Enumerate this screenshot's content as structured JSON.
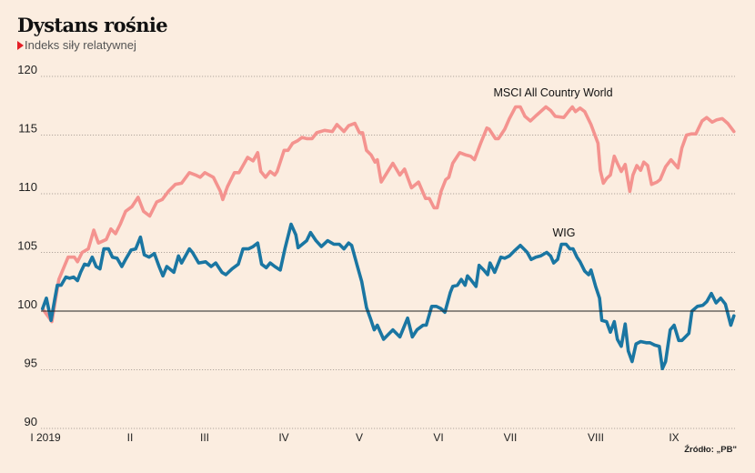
{
  "header": {
    "title": "Dystans rośnie",
    "subtitle": "Indeks siły relatywnej",
    "subtitle_marker_icon": "red-triangle-icon"
  },
  "source": "Źródło: „PB\"",
  "colors": {
    "background": "#fbede0",
    "msci": "#f4938f",
    "wig": "#1a76a2",
    "baseline": "#222222",
    "grid": "#9a9088",
    "marker": "#e41e26"
  },
  "chart_data": {
    "type": "line",
    "title": "Dystans rośnie",
    "subtitle": "Indeks siły relatywnej",
    "xlabel": "",
    "ylabel": "",
    "x_unit": "months since start of January 2019",
    "xlim": [
      0,
      9
    ],
    "ylim": [
      90,
      120
    ],
    "yticks": [
      90,
      95,
      100,
      105,
      110,
      115,
      120
    ],
    "ytick_labels": [
      "90",
      "95",
      "100",
      "105",
      "110",
      "115",
      "120"
    ],
    "xticks": [
      0,
      1,
      2,
      3,
      4,
      5,
      6,
      7,
      8
    ],
    "xtick_labels": [
      "I 2019",
      "II",
      "III",
      "IV",
      "V",
      "VI",
      "VII",
      "VIII",
      "IX"
    ],
    "baseline": 100,
    "grid": true,
    "legend": "none (direct labels)",
    "annotations": [
      {
        "text": "MSCI All Country World",
        "series": "MSCI All Country World"
      },
      {
        "text": "WIG",
        "series": "WIG"
      }
    ],
    "series": [
      {
        "name": "MSCI All Country World",
        "color": "#f4938f",
        "points": [
          [
            -0.12,
            100.2
          ],
          [
            0.0,
            99.1
          ],
          [
            0.09,
            102.7
          ],
          [
            0.21,
            104.6
          ],
          [
            0.29,
            104.6
          ],
          [
            0.33,
            104.2
          ],
          [
            0.39,
            105.0
          ],
          [
            0.47,
            105.3
          ],
          [
            0.54,
            106.9
          ],
          [
            0.6,
            105.8
          ],
          [
            0.7,
            106.1
          ],
          [
            0.76,
            107.0
          ],
          [
            0.82,
            106.6
          ],
          [
            0.88,
            107.4
          ],
          [
            0.95,
            108.5
          ],
          [
            1.03,
            108.9
          ],
          [
            1.11,
            109.7
          ],
          [
            1.18,
            108.5
          ],
          [
            1.26,
            108.1
          ],
          [
            1.35,
            109.3
          ],
          [
            1.42,
            109.5
          ],
          [
            1.5,
            110.2
          ],
          [
            1.59,
            110.8
          ],
          [
            1.67,
            110.9
          ],
          [
            1.77,
            111.8
          ],
          [
            1.85,
            111.6
          ],
          [
            1.91,
            111.4
          ],
          [
            1.97,
            111.8
          ],
          [
            2.08,
            111.4
          ],
          [
            2.17,
            110.2
          ],
          [
            2.2,
            109.5
          ],
          [
            2.26,
            110.6
          ],
          [
            2.35,
            111.8
          ],
          [
            2.41,
            111.8
          ],
          [
            2.52,
            113.1
          ],
          [
            2.59,
            112.8
          ],
          [
            2.65,
            113.5
          ],
          [
            2.69,
            111.9
          ],
          [
            2.75,
            111.4
          ],
          [
            2.81,
            111.9
          ],
          [
            2.87,
            111.6
          ],
          [
            2.9,
            111.9
          ],
          [
            2.99,
            113.7
          ],
          [
            3.04,
            113.7
          ],
          [
            3.1,
            114.3
          ],
          [
            3.16,
            114.5
          ],
          [
            3.22,
            114.8
          ],
          [
            3.28,
            114.7
          ],
          [
            3.35,
            114.7
          ],
          [
            3.41,
            115.2
          ],
          [
            3.51,
            115.4
          ],
          [
            3.61,
            115.3
          ],
          [
            3.67,
            115.9
          ],
          [
            3.76,
            115.3
          ],
          [
            3.82,
            115.8
          ],
          [
            3.9,
            116.0
          ],
          [
            3.96,
            115.2
          ],
          [
            4.0,
            115.2
          ],
          [
            4.05,
            113.7
          ],
          [
            4.11,
            113.3
          ],
          [
            4.16,
            112.7
          ],
          [
            4.19,
            112.9
          ],
          [
            4.24,
            111.0
          ],
          [
            4.39,
            112.6
          ],
          [
            4.48,
            111.6
          ],
          [
            4.54,
            112.1
          ],
          [
            4.63,
            110.5
          ],
          [
            4.72,
            111.0
          ],
          [
            4.81,
            109.6
          ],
          [
            4.86,
            109.6
          ],
          [
            4.92,
            108.8
          ],
          [
            4.96,
            108.8
          ],
          [
            5.01,
            110.2
          ],
          [
            5.07,
            111.2
          ],
          [
            5.11,
            111.4
          ],
          [
            5.16,
            112.6
          ],
          [
            5.25,
            113.5
          ],
          [
            5.33,
            113.3
          ],
          [
            5.39,
            113.2
          ],
          [
            5.44,
            112.9
          ],
          [
            5.52,
            114.3
          ],
          [
            5.6,
            115.6
          ],
          [
            5.63,
            115.5
          ],
          [
            5.71,
            114.7
          ],
          [
            5.75,
            114.7
          ],
          [
            5.83,
            115.5
          ],
          [
            5.89,
            116.4
          ],
          [
            5.97,
            117.4
          ],
          [
            6.03,
            117.4
          ],
          [
            6.09,
            116.6
          ],
          [
            6.16,
            116.2
          ],
          [
            6.24,
            116.7
          ],
          [
            6.36,
            117.4
          ],
          [
            6.42,
            117.1
          ],
          [
            6.48,
            116.6
          ],
          [
            6.59,
            116.5
          ],
          [
            6.65,
            117.0
          ],
          [
            6.7,
            117.4
          ],
          [
            6.74,
            117.0
          ],
          [
            6.8,
            117.3
          ],
          [
            6.86,
            117.0
          ],
          [
            6.94,
            115.9
          ],
          [
            7.03,
            114.3
          ],
          [
            7.06,
            112.0
          ],
          [
            7.1,
            110.9
          ],
          [
            7.14,
            111.3
          ],
          [
            7.19,
            111.6
          ],
          [
            7.24,
            113.2
          ],
          [
            7.28,
            112.6
          ],
          [
            7.33,
            111.9
          ],
          [
            7.38,
            112.5
          ],
          [
            7.44,
            110.2
          ],
          [
            7.48,
            111.6
          ],
          [
            7.53,
            112.4
          ],
          [
            7.58,
            112.0
          ],
          [
            7.62,
            112.7
          ],
          [
            7.67,
            112.4
          ],
          [
            7.72,
            110.8
          ],
          [
            7.79,
            111.0
          ],
          [
            7.83,
            111.2
          ],
          [
            7.9,
            112.3
          ],
          [
            7.97,
            112.9
          ],
          [
            8.06,
            112.2
          ],
          [
            8.11,
            113.9
          ],
          [
            8.17,
            115.0
          ],
          [
            8.23,
            115.1
          ],
          [
            8.29,
            115.1
          ],
          [
            8.37,
            116.2
          ],
          [
            8.43,
            116.5
          ],
          [
            8.5,
            116.1
          ],
          [
            8.56,
            116.3
          ],
          [
            8.63,
            116.4
          ],
          [
            8.7,
            116.0
          ],
          [
            8.78,
            115.3
          ]
        ]
      },
      {
        "name": "WIG",
        "color": "#1a76a2",
        "points": [
          [
            -0.12,
            100.2
          ],
          [
            -0.07,
            101.1
          ],
          [
            -0.01,
            99.2
          ],
          [
            0.04,
            101.1
          ],
          [
            0.07,
            102.2
          ],
          [
            0.12,
            102.2
          ],
          [
            0.18,
            102.9
          ],
          [
            0.23,
            102.8
          ],
          [
            0.28,
            102.9
          ],
          [
            0.33,
            102.6
          ],
          [
            0.37,
            103.3
          ],
          [
            0.42,
            104.0
          ],
          [
            0.47,
            103.9
          ],
          [
            0.52,
            104.6
          ],
          [
            0.57,
            103.8
          ],
          [
            0.62,
            103.6
          ],
          [
            0.67,
            105.3
          ],
          [
            0.73,
            105.3
          ],
          [
            0.78,
            104.6
          ],
          [
            0.84,
            104.5
          ],
          [
            0.9,
            103.8
          ],
          [
            0.95,
            104.4
          ],
          [
            1.02,
            105.2
          ],
          [
            1.08,
            105.3
          ],
          [
            1.14,
            106.3
          ],
          [
            1.19,
            104.8
          ],
          [
            1.25,
            104.6
          ],
          [
            1.32,
            104.9
          ],
          [
            1.38,
            103.8
          ],
          [
            1.43,
            103.0
          ],
          [
            1.48,
            103.8
          ],
          [
            1.57,
            103.3
          ],
          [
            1.63,
            104.7
          ],
          [
            1.67,
            104.1
          ],
          [
            1.77,
            105.3
          ],
          [
            1.81,
            105.0
          ],
          [
            1.89,
            104.1
          ],
          [
            1.98,
            104.2
          ],
          [
            2.05,
            103.8
          ],
          [
            2.11,
            104.1
          ],
          [
            2.19,
            103.3
          ],
          [
            2.24,
            103.1
          ],
          [
            2.32,
            103.6
          ],
          [
            2.4,
            104.0
          ],
          [
            2.46,
            105.3
          ],
          [
            2.53,
            105.3
          ],
          [
            2.59,
            105.5
          ],
          [
            2.65,
            105.8
          ],
          [
            2.7,
            104.0
          ],
          [
            2.76,
            103.7
          ],
          [
            2.81,
            104.1
          ],
          [
            2.87,
            103.8
          ],
          [
            2.94,
            103.5
          ],
          [
            3.0,
            105.3
          ],
          [
            3.08,
            107.4
          ],
          [
            3.14,
            106.5
          ],
          [
            3.17,
            105.4
          ],
          [
            3.28,
            106.0
          ],
          [
            3.33,
            106.7
          ],
          [
            3.4,
            106.0
          ],
          [
            3.47,
            105.5
          ],
          [
            3.55,
            106.0
          ],
          [
            3.63,
            105.7
          ],
          [
            3.7,
            105.7
          ],
          [
            3.76,
            105.3
          ],
          [
            3.82,
            105.8
          ],
          [
            3.86,
            105.6
          ],
          [
            3.93,
            103.9
          ],
          [
            3.99,
            102.5
          ],
          [
            4.05,
            100.3
          ],
          [
            4.1,
            99.4
          ],
          [
            4.15,
            98.4
          ],
          [
            4.19,
            98.8
          ],
          [
            4.27,
            97.6
          ],
          [
            4.33,
            98.0
          ],
          [
            4.39,
            98.4
          ],
          [
            4.48,
            97.8
          ],
          [
            4.58,
            99.4
          ],
          [
            4.64,
            97.8
          ],
          [
            4.7,
            98.4
          ],
          [
            4.78,
            98.8
          ],
          [
            4.82,
            98.8
          ],
          [
            4.89,
            100.4
          ],
          [
            4.95,
            100.4
          ],
          [
            5.01,
            100.2
          ],
          [
            5.06,
            99.9
          ],
          [
            5.13,
            101.6
          ],
          [
            5.16,
            102.1
          ],
          [
            5.22,
            102.2
          ],
          [
            5.27,
            102.7
          ],
          [
            5.32,
            102.2
          ],
          [
            5.35,
            103.0
          ],
          [
            5.39,
            102.7
          ],
          [
            5.46,
            102.1
          ],
          [
            5.5,
            103.9
          ],
          [
            5.56,
            103.5
          ],
          [
            5.61,
            103.1
          ],
          [
            5.64,
            104.1
          ],
          [
            5.7,
            103.3
          ],
          [
            5.78,
            104.6
          ],
          [
            5.83,
            104.5
          ],
          [
            5.89,
            104.7
          ],
          [
            5.95,
            105.1
          ],
          [
            6.03,
            105.6
          ],
          [
            6.09,
            105.2
          ],
          [
            6.12,
            105.0
          ],
          [
            6.17,
            104.4
          ],
          [
            6.23,
            104.6
          ],
          [
            6.29,
            104.7
          ],
          [
            6.37,
            105.0
          ],
          [
            6.42,
            104.7
          ],
          [
            6.46,
            104.1
          ],
          [
            6.51,
            104.4
          ],
          [
            6.56,
            105.7
          ],
          [
            6.62,
            105.7
          ],
          [
            6.67,
            105.3
          ],
          [
            6.71,
            105.3
          ],
          [
            6.76,
            104.6
          ],
          [
            6.8,
            104.2
          ],
          [
            6.86,
            103.4
          ],
          [
            6.91,
            103.1
          ],
          [
            6.94,
            103.5
          ],
          [
            7.0,
            102.1
          ],
          [
            7.05,
            101.1
          ],
          [
            7.08,
            99.2
          ],
          [
            7.14,
            99.1
          ],
          [
            7.19,
            98.2
          ],
          [
            7.24,
            99.1
          ],
          [
            7.28,
            97.6
          ],
          [
            7.33,
            97.0
          ],
          [
            7.38,
            98.9
          ],
          [
            7.42,
            96.6
          ],
          [
            7.47,
            95.7
          ],
          [
            7.52,
            97.2
          ],
          [
            7.58,
            97.4
          ],
          [
            7.65,
            97.3
          ],
          [
            7.7,
            97.3
          ],
          [
            7.76,
            97.1
          ],
          [
            7.82,
            97.0
          ],
          [
            7.86,
            95.1
          ],
          [
            7.9,
            95.7
          ],
          [
            7.96,
            98.4
          ],
          [
            8.01,
            98.8
          ],
          [
            8.07,
            97.5
          ],
          [
            8.11,
            97.5
          ],
          [
            8.2,
            98.1
          ],
          [
            8.24,
            100.0
          ],
          [
            8.31,
            100.4
          ],
          [
            8.38,
            100.5
          ],
          [
            8.43,
            100.8
          ],
          [
            8.49,
            101.5
          ],
          [
            8.55,
            100.7
          ],
          [
            8.61,
            101.1
          ],
          [
            8.67,
            100.6
          ],
          [
            8.74,
            98.8
          ],
          [
            8.78,
            99.6
          ]
        ]
      }
    ]
  }
}
